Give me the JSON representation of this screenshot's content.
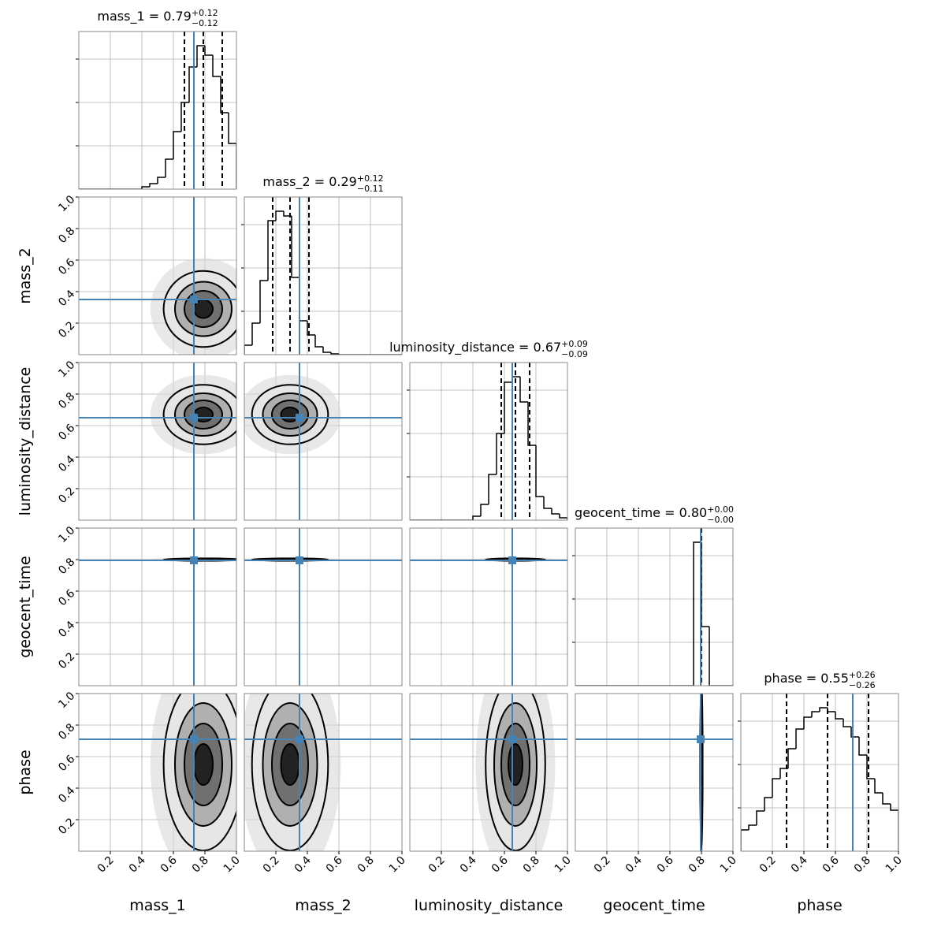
{
  "chart_data": {
    "type": "corner",
    "lim": [
      0,
      1
    ],
    "ticks": [
      0.2,
      0.4,
      0.6,
      0.8,
      {
        "value": 1,
        "label": "1.0"
      }
    ],
    "grid": true,
    "truth_color": "#4682b4",
    "title_sep": " = ",
    "bins": [
      0,
      0.05,
      0.1,
      0.15,
      0.2,
      0.25,
      0.3,
      0.35,
      0.4,
      0.45,
      0.5,
      0.55,
      0.6,
      0.65,
      0.7,
      0.75,
      0.8,
      0.85,
      0.9,
      0.95,
      1
    ],
    "hist_ylim": [
      0,
      3636
    ],
    "hist_yticks": [
      1000,
      2000,
      3000
    ],
    "parameters": [
      {
        "name": "mass_1",
        "truth": 0.73,
        "stats": {
          "values": [
            0.79,
            0.12,
            0.12
          ],
          "value_labels": [
            "0.79",
            "+0.12",
            "−0.12"
          ]
        },
        "counts": [
          0,
          0,
          0,
          0,
          0,
          0,
          0,
          0,
          55,
          127,
          273,
          691,
          1327,
          2000,
          2818,
          3309,
          3091,
          2600,
          1764,
          1055
        ]
      },
      {
        "name": "mass_2",
        "truth": 0.35,
        "stats": {
          "values": [
            0.29,
            0.12,
            0.11
          ],
          "value_labels": [
            "0.29",
            "+0.12",
            "−0.11"
          ]
        },
        "counts": [
          218,
          727,
          1709,
          3091,
          3309,
          3200,
          1782,
          782,
          455,
          182,
          55,
          18,
          0,
          0,
          0,
          0,
          0,
          0,
          0,
          0
        ]
      },
      {
        "name": "luminosity_distance",
        "truth": 0.65,
        "stats": {
          "values": [
            0.67,
            0.09,
            0.09
          ],
          "value_labels": [
            "0.67",
            "+0.09",
            "−0.09"
          ]
        },
        "counts": [
          0,
          0,
          0,
          0,
          0,
          0,
          0,
          0,
          91,
          364,
          1055,
          2000,
          3182,
          3309,
          2727,
          1727,
          545,
          273,
          145,
          55
        ]
      },
      {
        "name": "geocent_time",
        "truth": 0.795,
        "stats": {
          "values": [
            0.8,
            0.0,
            0.0
          ],
          "value_labels": [
            "0.80",
            "+0.00",
            "−0.00"
          ]
        },
        "counts": [
          0,
          0,
          0,
          0,
          0,
          0,
          0,
          0,
          0,
          0,
          0,
          0,
          0,
          0,
          0,
          3309,
          1364,
          0,
          0,
          0
        ]
      },
      {
        "name": "phase",
        "truth": 0.71,
        "stats": {
          "values": [
            0.55,
            0.26,
            0.26
          ],
          "value_labels": [
            "0.55",
            "+0.26",
            "−0.26"
          ]
        },
        "counts": [
          491,
          600,
          927,
          1236,
          1673,
          1909,
          2364,
          2818,
          3091,
          3218,
          3309,
          3218,
          3055,
          2873,
          2636,
          2218,
          1673,
          1345,
          1091,
          945
        ]
      }
    ]
  }
}
